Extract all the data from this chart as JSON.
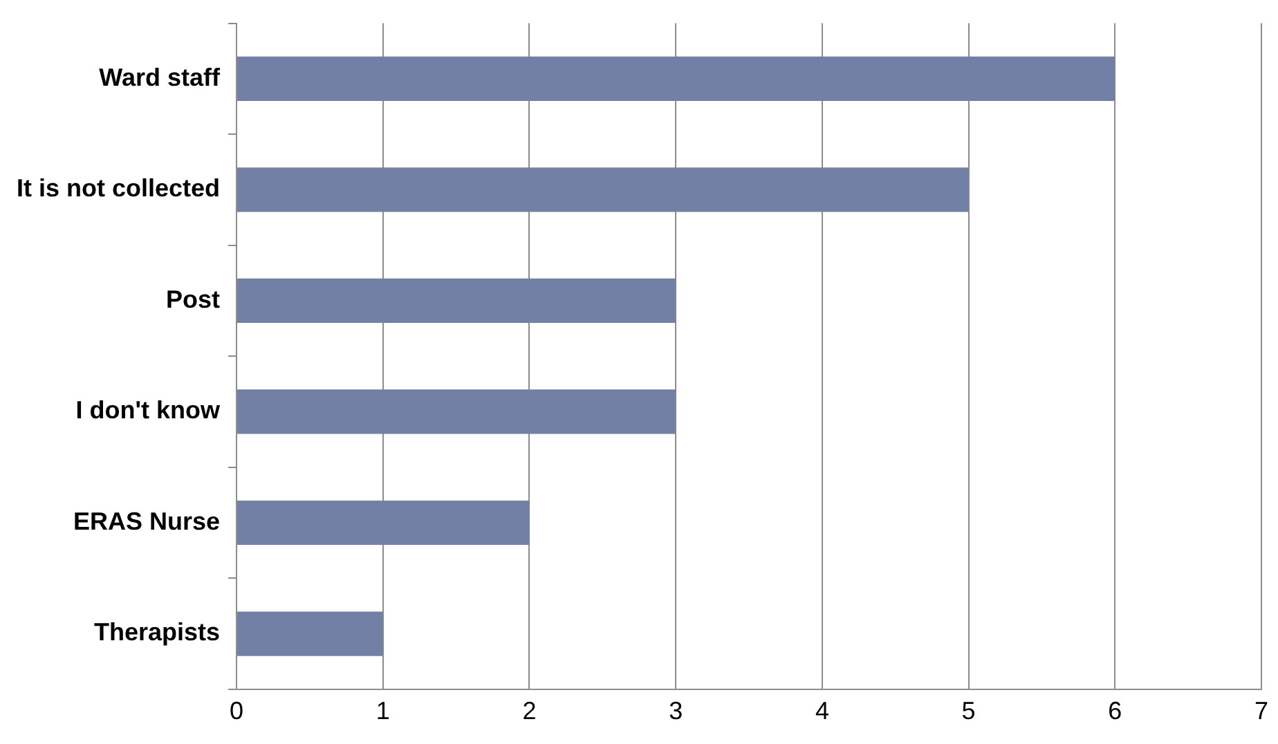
{
  "chart_data": {
    "type": "bar",
    "orientation": "horizontal",
    "categories": [
      "Ward staff",
      "It is not collected",
      "Post",
      "I don't know",
      "ERAS Nurse",
      "Therapists"
    ],
    "values": [
      6,
      5,
      3,
      3,
      2,
      1
    ],
    "color": "#7380a6",
    "xlim": [
      0,
      7
    ],
    "xticks": [
      0,
      1,
      2,
      3,
      4,
      5,
      6,
      7
    ],
    "grid": "x",
    "legend": false
  }
}
